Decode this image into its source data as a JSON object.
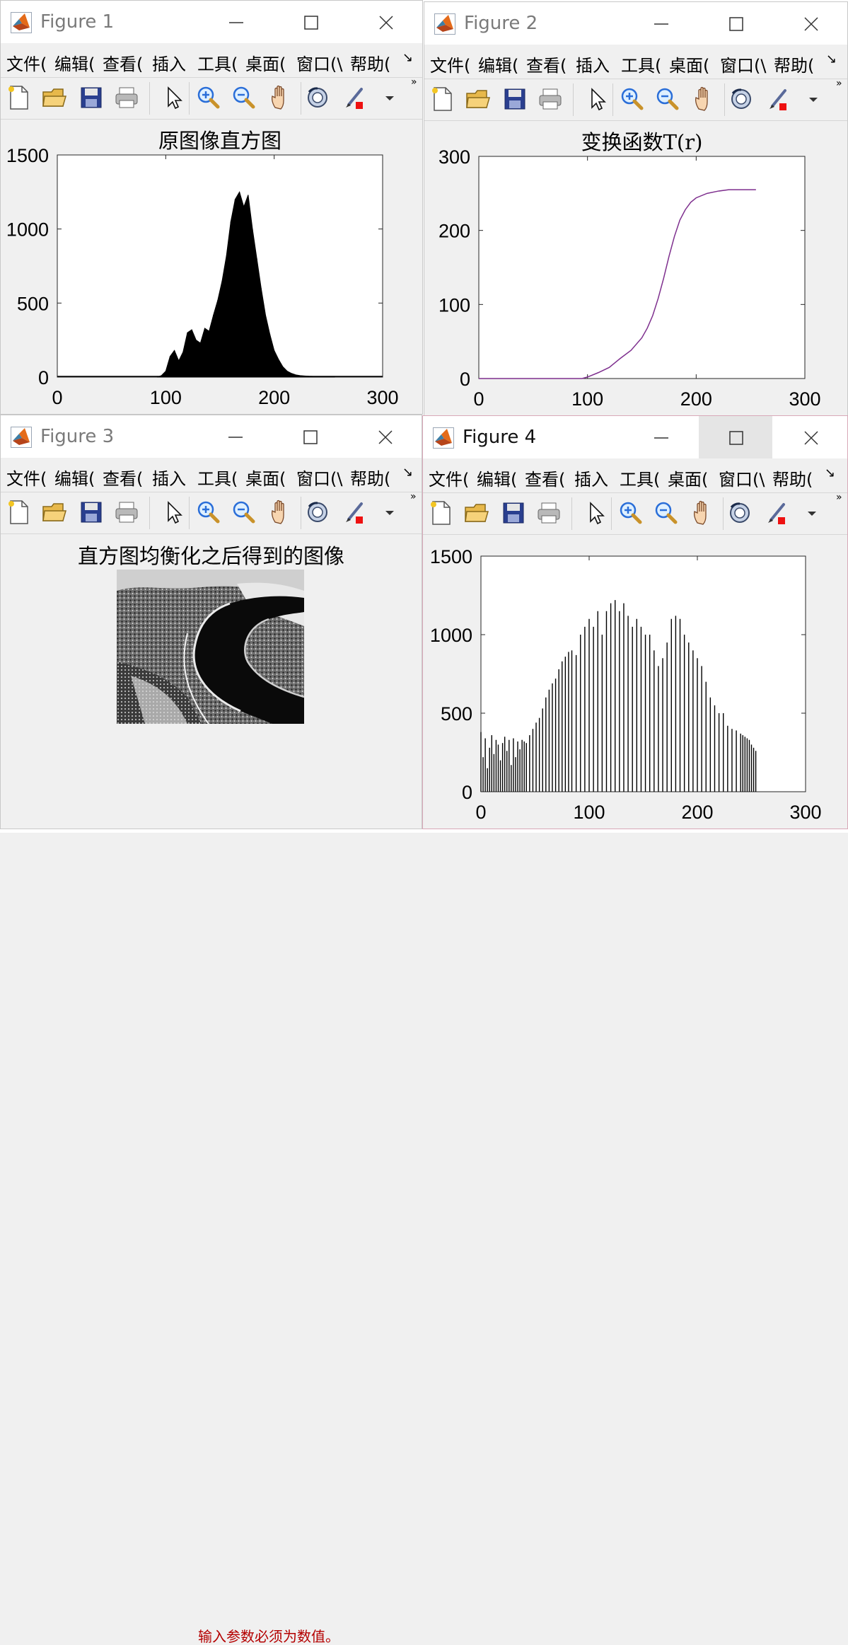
{
  "background": {
    "partial_text": "输入参数必须为数值。",
    "text_color": "#b40000"
  },
  "menu_labels": [
    "文件(",
    "编辑(",
    "查看(",
    "插入",
    "工具(",
    "桌面(",
    "窗口(\\",
    "帮助(",
    "↘"
  ],
  "toolbar_icons": [
    "new-file-icon",
    "open-folder-icon",
    "save-icon",
    "print-icon",
    "arrow-cursor-icon",
    "zoom-in-icon",
    "zoom-out-icon",
    "pan-hand-icon",
    "rotate-3d-icon",
    "brush-icon",
    "dropdown-arrow-icon",
    "overflow-chevron-icon"
  ],
  "toolbar_overflow": "»",
  "windows": [
    {
      "title": "Figure 1",
      "active": false,
      "axes": {
        "title": "原图像直方图",
        "xticks": [
          "0",
          "100",
          "200",
          "300"
        ],
        "yticks": [
          "0",
          "500",
          "1000",
          "1500"
        ]
      }
    },
    {
      "title": "Figure 2",
      "active": false,
      "axes": {
        "title": "变换函数T(r)",
        "xticks": [
          "0",
          "100",
          "200",
          "300"
        ],
        "yticks": [
          "0",
          "100",
          "200",
          "300"
        ]
      }
    },
    {
      "title": "Figure 3",
      "active": false,
      "image_title": "直方图均衡化之后得到的图像"
    },
    {
      "title": "Figure 4",
      "active": true,
      "axes": {
        "title": "",
        "xticks": [
          "0",
          "100",
          "200",
          "300"
        ],
        "yticks": [
          "0",
          "500",
          "1000",
          "1500"
        ]
      }
    }
  ],
  "chart_data": [
    {
      "type": "bar",
      "title": "原图像直方图",
      "xlim": [
        0,
        300
      ],
      "ylim": [
        0,
        1500
      ],
      "color": "#000000",
      "note_values": "counts per gray level 0-255",
      "x": [
        92,
        96,
        100,
        104,
        108,
        112,
        116,
        120,
        124,
        128,
        132,
        136,
        140,
        144,
        148,
        152,
        156,
        160,
        164,
        168,
        172,
        176,
        180,
        184,
        188,
        192,
        196,
        200,
        204,
        208,
        212,
        216,
        220,
        224,
        228,
        232,
        236,
        240,
        244,
        248,
        252,
        256
      ],
      "values": [
        0,
        10,
        40,
        140,
        180,
        110,
        170,
        300,
        320,
        250,
        230,
        330,
        310,
        420,
        520,
        650,
        820,
        1050,
        1200,
        1250,
        1150,
        1230,
        1000,
        800,
        600,
        420,
        290,
        180,
        120,
        70,
        40,
        25,
        15,
        10,
        8,
        6,
        5,
        4,
        3,
        2,
        2,
        0
      ]
    },
    {
      "type": "line",
      "title": "变换函数T(r)",
      "xlim": [
        0,
        300
      ],
      "ylim": [
        0,
        300
      ],
      "color": "#7e2f8e",
      "x": [
        0,
        95,
        100,
        110,
        120,
        130,
        140,
        150,
        155,
        160,
        165,
        170,
        175,
        180,
        185,
        190,
        195,
        200,
        210,
        220,
        230,
        240,
        250,
        255
      ],
      "y": [
        0,
        0,
        2,
        8,
        15,
        27,
        38,
        55,
        68,
        85,
        108,
        135,
        165,
        192,
        214,
        228,
        238,
        244,
        250,
        253,
        255,
        255,
        255,
        255
      ]
    },
    {
      "type": "bar",
      "title": "",
      "xlim": [
        0,
        300
      ],
      "ylim": [
        0,
        1500
      ],
      "color": "#000000",
      "x": [
        0,
        2,
        4,
        6,
        8,
        10,
        12,
        14,
        16,
        18,
        20,
        22,
        24,
        26,
        28,
        30,
        32,
        34,
        36,
        38,
        40,
        42,
        45,
        48,
        51,
        54,
        57,
        60,
        63,
        66,
        69,
        72,
        75,
        78,
        81,
        84,
        88,
        92,
        96,
        100,
        104,
        108,
        112,
        116,
        120,
        124,
        128,
        132,
        136,
        140,
        144,
        148,
        152,
        156,
        160,
        164,
        168,
        172,
        176,
        180,
        184,
        188,
        192,
        196,
        200,
        204,
        208,
        212,
        216,
        220,
        224,
        228,
        232,
        236,
        240,
        242,
        244,
        246,
        248,
        250,
        252,
        254
      ],
      "values": [
        380,
        220,
        340,
        150,
        280,
        360,
        240,
        330,
        300,
        200,
        310,
        350,
        260,
        330,
        170,
        340,
        220,
        320,
        270,
        330,
        320,
        310,
        360,
        400,
        440,
        470,
        530,
        600,
        650,
        690,
        720,
        780,
        830,
        860,
        890,
        900,
        870,
        1000,
        1050,
        1100,
        1050,
        1150,
        1000,
        1150,
        1200,
        1220,
        1150,
        1200,
        1120,
        1050,
        1100,
        1050,
        1000,
        1000,
        900,
        800,
        850,
        950,
        1100,
        1120,
        1100,
        1000,
        950,
        900,
        850,
        800,
        700,
        600,
        550,
        500,
        500,
        420,
        400,
        390,
        370,
        360,
        350,
        340,
        330,
        300,
        280,
        260
      ]
    }
  ]
}
